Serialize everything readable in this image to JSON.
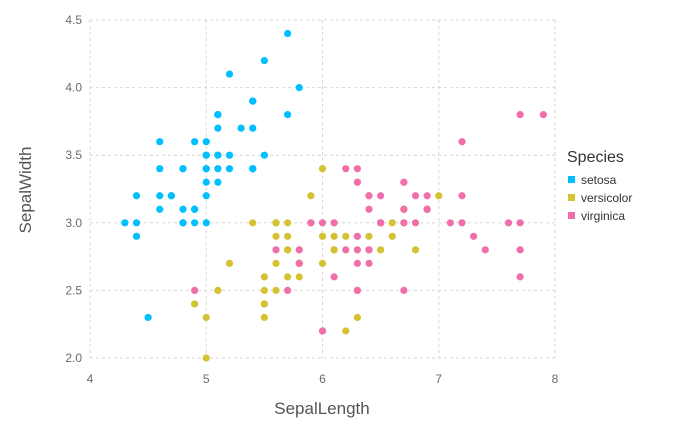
{
  "chart_data": {
    "type": "scatter",
    "xlabel": "SepalLength",
    "ylabel": "SepalWidth",
    "xlim": [
      4,
      8
    ],
    "ylim": [
      2.0,
      4.5
    ],
    "xticks": [
      "4",
      "5",
      "6",
      "7",
      "8"
    ],
    "yticks": [
      "2.0",
      "2.5",
      "3.0",
      "3.5",
      "4.0",
      "4.5"
    ],
    "grid": true,
    "legend": {
      "title": "Species",
      "placement": "right"
    },
    "series": [
      {
        "name": "setosa",
        "color": "#00BFFF",
        "points": [
          [
            5.1,
            3.5
          ],
          [
            4.9,
            3.0
          ],
          [
            4.7,
            3.2
          ],
          [
            4.6,
            3.1
          ],
          [
            5.0,
            3.6
          ],
          [
            5.4,
            3.9
          ],
          [
            4.6,
            3.4
          ],
          [
            5.0,
            3.4
          ],
          [
            4.4,
            2.9
          ],
          [
            4.9,
            3.1
          ],
          [
            5.4,
            3.7
          ],
          [
            4.8,
            3.4
          ],
          [
            4.8,
            3.0
          ],
          [
            4.3,
            3.0
          ],
          [
            5.8,
            4.0
          ],
          [
            5.7,
            4.4
          ],
          [
            5.4,
            3.9
          ],
          [
            5.1,
            3.5
          ],
          [
            5.7,
            3.8
          ],
          [
            5.1,
            3.8
          ],
          [
            5.4,
            3.4
          ],
          [
            5.1,
            3.7
          ],
          [
            4.6,
            3.6
          ],
          [
            5.1,
            3.3
          ],
          [
            4.8,
            3.4
          ],
          [
            5.0,
            3.0
          ],
          [
            5.0,
            3.4
          ],
          [
            5.2,
            3.5
          ],
          [
            5.2,
            3.4
          ],
          [
            4.7,
            3.2
          ],
          [
            4.8,
            3.1
          ],
          [
            5.4,
            3.4
          ],
          [
            5.2,
            4.1
          ],
          [
            5.5,
            4.2
          ],
          [
            4.9,
            3.1
          ],
          [
            5.0,
            3.2
          ],
          [
            5.5,
            3.5
          ],
          [
            4.9,
            3.6
          ],
          [
            4.4,
            3.0
          ],
          [
            5.1,
            3.4
          ],
          [
            5.0,
            3.5
          ],
          [
            4.5,
            2.3
          ],
          [
            4.4,
            3.2
          ],
          [
            5.0,
            3.5
          ],
          [
            5.1,
            3.8
          ],
          [
            4.8,
            3.0
          ],
          [
            5.1,
            3.8
          ],
          [
            4.6,
            3.2
          ],
          [
            5.3,
            3.7
          ],
          [
            5.0,
            3.3
          ]
        ]
      },
      {
        "name": "versicolor",
        "color": "#D4C232",
        "points": [
          [
            7.0,
            3.2
          ],
          [
            6.4,
            3.2
          ],
          [
            6.9,
            3.1
          ],
          [
            5.5,
            2.3
          ],
          [
            6.5,
            2.8
          ],
          [
            5.7,
            2.8
          ],
          [
            6.3,
            3.3
          ],
          [
            4.9,
            2.4
          ],
          [
            6.6,
            2.9
          ],
          [
            5.2,
            2.7
          ],
          [
            5.0,
            2.0
          ],
          [
            5.9,
            3.0
          ],
          [
            6.0,
            2.2
          ],
          [
            6.1,
            2.9
          ],
          [
            5.6,
            2.9
          ],
          [
            6.7,
            3.1
          ],
          [
            5.6,
            3.0
          ],
          [
            5.8,
            2.7
          ],
          [
            6.2,
            2.2
          ],
          [
            5.6,
            2.5
          ],
          [
            5.9,
            3.2
          ],
          [
            6.1,
            2.8
          ],
          [
            6.3,
            2.5
          ],
          [
            6.1,
            2.8
          ],
          [
            6.4,
            2.9
          ],
          [
            6.6,
            3.0
          ],
          [
            6.8,
            2.8
          ],
          [
            6.7,
            3.0
          ],
          [
            6.0,
            2.9
          ],
          [
            5.7,
            2.6
          ],
          [
            5.5,
            2.4
          ],
          [
            5.5,
            2.4
          ],
          [
            5.8,
            2.7
          ],
          [
            6.0,
            2.7
          ],
          [
            5.4,
            3.0
          ],
          [
            6.0,
            3.4
          ],
          [
            6.7,
            3.1
          ],
          [
            6.3,
            2.3
          ],
          [
            5.6,
            3.0
          ],
          [
            5.5,
            2.5
          ],
          [
            5.5,
            2.6
          ],
          [
            6.1,
            3.0
          ],
          [
            5.8,
            2.6
          ],
          [
            5.0,
            2.3
          ],
          [
            5.6,
            2.7
          ],
          [
            5.7,
            3.0
          ],
          [
            5.7,
            2.9
          ],
          [
            6.2,
            2.9
          ],
          [
            5.1,
            2.5
          ],
          [
            5.7,
            2.8
          ]
        ]
      },
      {
        "name": "virginica",
        "color": "#F06EAA",
        "points": [
          [
            6.3,
            3.3
          ],
          [
            5.8,
            2.7
          ],
          [
            7.1,
            3.0
          ],
          [
            6.3,
            2.9
          ],
          [
            6.5,
            3.0
          ],
          [
            7.6,
            3.0
          ],
          [
            4.9,
            2.5
          ],
          [
            7.3,
            2.9
          ],
          [
            6.7,
            2.5
          ],
          [
            7.2,
            3.6
          ],
          [
            6.5,
            3.2
          ],
          [
            6.4,
            2.7
          ],
          [
            6.8,
            3.0
          ],
          [
            5.7,
            2.5
          ],
          [
            5.8,
            2.8
          ],
          [
            6.4,
            3.2
          ],
          [
            6.5,
            3.0
          ],
          [
            7.7,
            3.8
          ],
          [
            7.7,
            2.6
          ],
          [
            6.0,
            2.2
          ],
          [
            6.9,
            3.2
          ],
          [
            5.6,
            2.8
          ],
          [
            7.7,
            2.8
          ],
          [
            6.3,
            2.7
          ],
          [
            6.7,
            3.3
          ],
          [
            7.2,
            3.2
          ],
          [
            6.2,
            2.8
          ],
          [
            6.1,
            3.0
          ],
          [
            6.4,
            2.8
          ],
          [
            7.2,
            3.0
          ],
          [
            7.4,
            2.8
          ],
          [
            7.9,
            3.8
          ],
          [
            6.4,
            2.8
          ],
          [
            6.3,
            2.8
          ],
          [
            6.1,
            2.6
          ],
          [
            7.7,
            3.0
          ],
          [
            6.3,
            3.4
          ],
          [
            6.4,
            3.1
          ],
          [
            6.0,
            3.0
          ],
          [
            6.9,
            3.1
          ],
          [
            6.7,
            3.1
          ],
          [
            6.9,
            3.1
          ],
          [
            5.8,
            2.7
          ],
          [
            6.8,
            3.2
          ],
          [
            6.7,
            3.3
          ],
          [
            6.7,
            3.0
          ],
          [
            6.3,
            2.5
          ],
          [
            6.5,
            3.0
          ],
          [
            6.2,
            3.4
          ],
          [
            5.9,
            3.0
          ]
        ]
      }
    ]
  }
}
